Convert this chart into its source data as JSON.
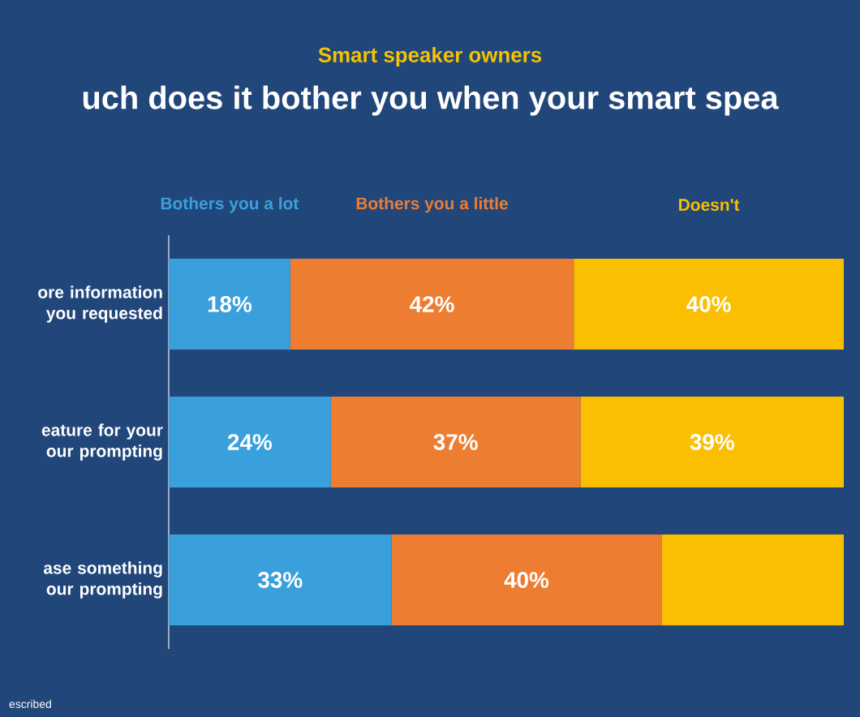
{
  "chart_data": {
    "type": "bar",
    "orientation": "horizontal",
    "stacked": true,
    "title": "Smart speaker owners",
    "subtitle": "uch does it bother you when your smart spea",
    "categories": [
      "ore information you requested",
      "eature for your our prompting",
      "ase something our prompting"
    ],
    "series": [
      {
        "name": "Bothers you a lot",
        "color": "#3aa0dc",
        "values": [
          18,
          24,
          33
        ],
        "value_labels": [
          "18%",
          "24%",
          "33%"
        ]
      },
      {
        "name": "Bothers you a little",
        "color": "#ed7d31",
        "values": [
          42,
          37,
          40
        ],
        "value_labels": [
          "42%",
          "37%",
          "40%"
        ]
      },
      {
        "name": "Doesn't",
        "color": "#f9bf00",
        "values": [
          40,
          39,
          27
        ],
        "value_labels": [
          "40%",
          "39%",
          null
        ]
      }
    ],
    "legend": "top",
    "annotations": [
      "escribed"
    ]
  }
}
